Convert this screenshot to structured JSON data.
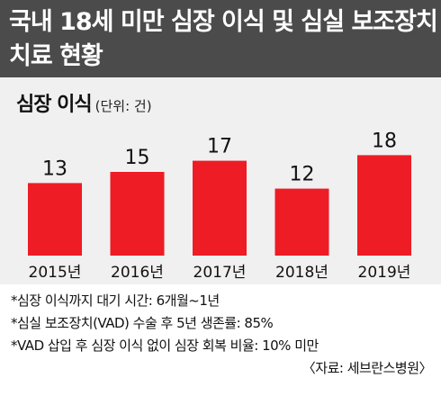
{
  "header": {
    "title_line1": "국내 18세 미만 심장 이식 및 심실 보조장치",
    "title_line2": "치료 현황"
  },
  "chart_title": {
    "main": "심장 이식",
    "unit": "(단위: 건)"
  },
  "chart_data": {
    "type": "bar",
    "title": "심장 이식",
    "unit": "(단위: 건)",
    "categories": [
      "2015년",
      "2016년",
      "2017년",
      "2018년",
      "2019년"
    ],
    "values": [
      13,
      15,
      17,
      12,
      18
    ],
    "ylim": [
      0,
      20
    ],
    "grid": false,
    "legend": "none",
    "bar_color": "#ee1c25"
  },
  "notes": [
    "*심장 이식까지 대기 시간: 6개월~1년",
    "*심실 보조장치(VAD) 수술 후 5년 생존률: 85%",
    "*VAD 삽입 후 심장 이식 없이 심장 회복 비율: 10% 미만"
  ],
  "source": "〈자료: 세브란스병원〉",
  "colors": {
    "header_bg": "#4b4b4b",
    "chart_bg": "#f0f0f0",
    "bar": "#ee1c25"
  }
}
